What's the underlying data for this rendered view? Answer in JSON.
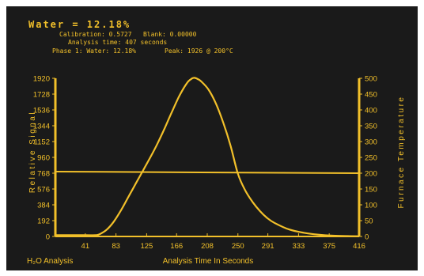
{
  "header": {
    "result_line": "Water = 12.18%",
    "calibration_line": "Calibration: 0.5727   Blank: 0.00000",
    "analysis_time_line": "Analysis time: 407 seconds",
    "phase_line": "Phase 1: Water: 12.18%",
    "peak_line": "Peak: 1926 @ 200°C"
  },
  "footer": {
    "method_name": "H₂O Analysis"
  },
  "colors": {
    "background": "#1a1a1a",
    "trace": "#f2c02a"
  },
  "chart_data": {
    "type": "line",
    "xlabel": "Analysis Time In Seconds",
    "ylabel": "Relative Signal",
    "y2label": "Furnace Temperature",
    "x_ticks": [
      41,
      83,
      125,
      166,
      208,
      250,
      291,
      333,
      375,
      416
    ],
    "xlim": [
      0,
      416
    ],
    "y_ticks": [
      0,
      192,
      384,
      576,
      768,
      960,
      1152,
      1344,
      1536,
      1728,
      1920
    ],
    "ylim": [
      0,
      1920
    ],
    "y2_ticks": [
      0,
      50,
      100,
      150,
      200,
      250,
      300,
      350,
      400,
      450,
      500
    ],
    "y2lim": [
      0,
      500
    ],
    "grid": false,
    "series": [
      {
        "name": "Relative Signal",
        "axis": "left",
        "x": [
          0,
          40,
          55,
          60,
          70,
          80,
          90,
          100,
          110,
          120,
          130,
          140,
          150,
          160,
          170,
          180,
          185,
          190,
          195,
          200,
          210,
          220,
          230,
          240,
          250,
          260,
          270,
          280,
          290,
          300,
          320,
          340,
          360,
          380,
          400,
          416
        ],
        "y": [
          15,
          15,
          15,
          25,
          80,
          180,
          320,
          480,
          640,
          800,
          960,
          1130,
          1320,
          1520,
          1710,
          1860,
          1905,
          1926,
          1910,
          1880,
          1780,
          1610,
          1380,
          1100,
          760,
          560,
          420,
          310,
          225,
          165,
          85,
          45,
          22,
          10,
          5,
          3
        ]
      },
      {
        "name": "Furnace Temperature",
        "axis": "right",
        "x": [
          0,
          416
        ],
        "y": [
          205,
          200
        ]
      }
    ]
  }
}
